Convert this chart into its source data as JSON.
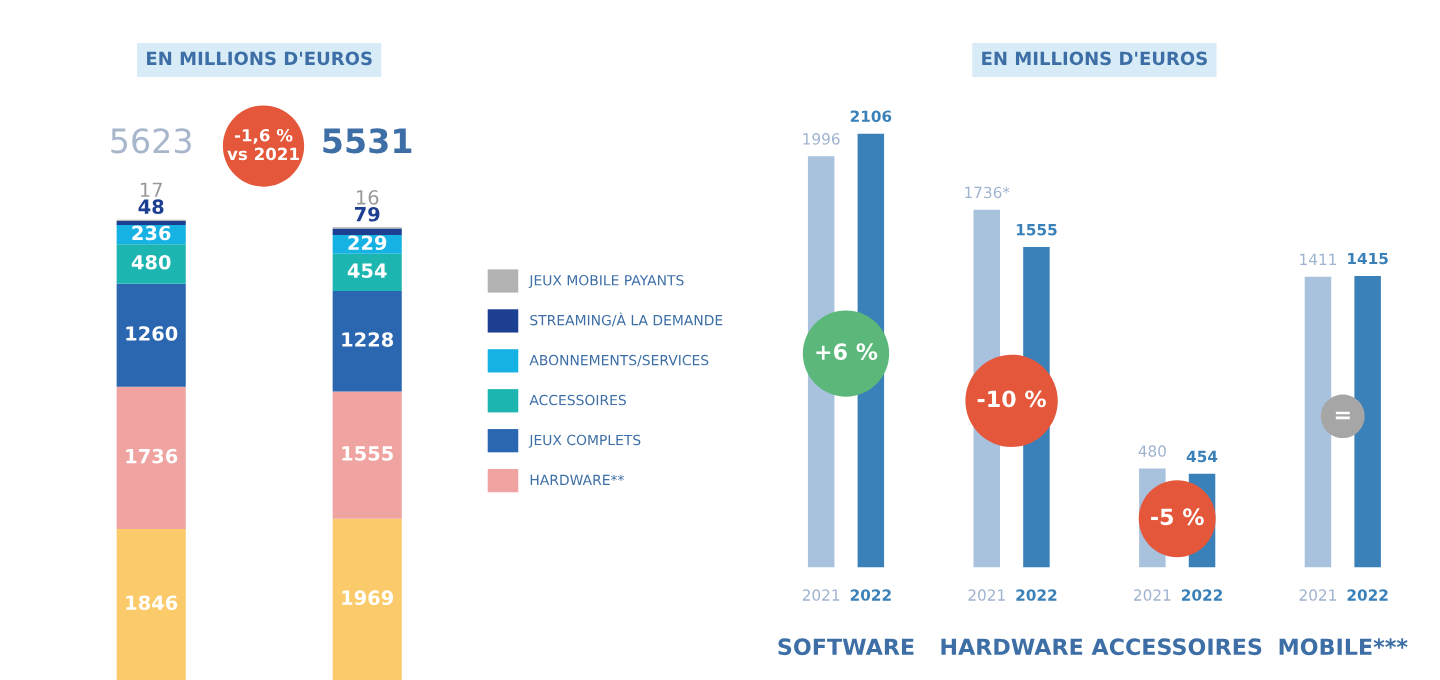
{
  "chart_data": [
    {
      "type": "bar",
      "title": "EN MILLIONS D'EUROS",
      "categories": [
        null,
        null
      ],
      "stacked": true,
      "data_labels": true,
      "totals": [
        "5623",
        "5531"
      ],
      "legend": "right",
      "annotations": [
        "-1,6 %\nvs 2021"
      ],
      "series": [
        {
          "color": "#fbcb6b",
          "values": [
            1846,
            1969
          ]
        },
        {
          "name": "HARDWARE**",
          "color": "#f0a4a1",
          "values": [
            1736,
            1555
          ]
        },
        {
          "name": "JEUX COMPLETS",
          "color": "#2b67b1",
          "values": [
            1260,
            1228
          ]
        },
        {
          "name": "ACCESSOIRES",
          "color": "#1cb5af",
          "values": [
            480,
            454
          ]
        },
        {
          "name": "ABONNEMENTS/SERVICES",
          "color": "#17b2e4",
          "values": [
            236,
            229
          ]
        },
        {
          "name": "STREAMING/À LA DEMANDE",
          "color": "#1d3f91",
          "values": [
            48,
            79
          ]
        },
        {
          "name": "JEUX MOBILE PAYANTS",
          "color": "#b3b3b3",
          "values": [
            17,
            16
          ]
        }
      ]
    },
    {
      "type": "bar",
      "title": "EN MILLIONS D'EUROS",
      "categories": [
        "SOFTWARE",
        "HARDWARE",
        "ACCESSOIRES",
        "MOBILE***"
      ],
      "annotations": [
        "+6 %",
        "-10 %",
        "-5 %",
        "="
      ],
      "series": [
        {
          "name": "2021",
          "color": "#a8c1dd",
          "values": [
            1996,
            1736,
            480,
            1411
          ],
          "value_labels": [
            "1996",
            "1736*",
            "480",
            "1411"
          ]
        },
        {
          "name": "2022",
          "color": "#3a80b9",
          "values": [
            2106,
            1555,
            454,
            1415
          ],
          "value_labels": [
            "2106",
            "1555",
            "454",
            "1415"
          ]
        }
      ]
    }
  ]
}
